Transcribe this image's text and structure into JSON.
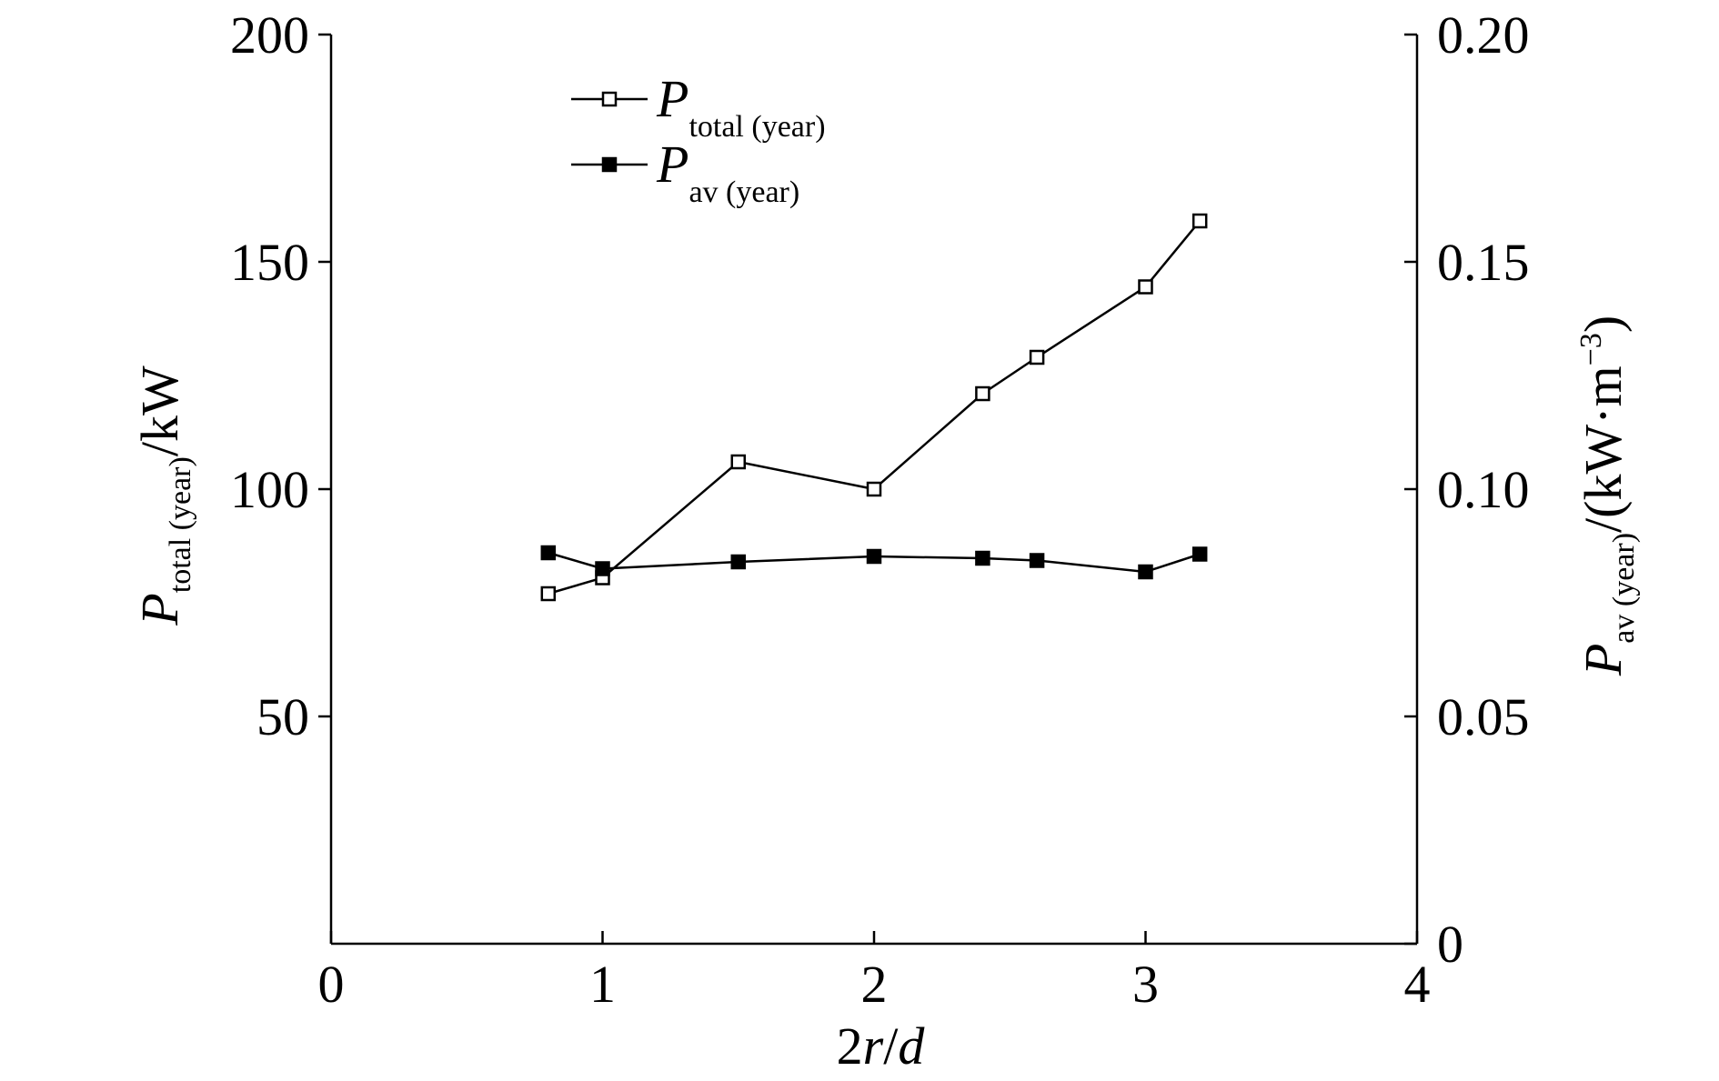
{
  "chart_data": {
    "type": "line",
    "x_axis": {
      "label_main": "2",
      "label_r": "r",
      "label_slash": "/",
      "label_d": "d",
      "range": [
        0,
        4
      ],
      "ticks": [
        0,
        1,
        2,
        3,
        4
      ],
      "tick_labels": [
        "0",
        "1",
        "2",
        "3",
        "4"
      ]
    },
    "y_left": {
      "label_P": "P",
      "label_sub": "total (year)",
      "label_unit": "/kW",
      "range": [
        0,
        200
      ],
      "ticks": [
        50,
        100,
        150,
        200
      ],
      "tick_labels": [
        "50",
        "100",
        "150",
        "200"
      ]
    },
    "y_right": {
      "label_P": "P",
      "label_sub": "av (year)",
      "label_unit_a": "/(kW·m",
      "label_sup": "−3",
      "label_unit_b": ")",
      "range": [
        0,
        0.2
      ],
      "ticks": [
        0,
        0.05,
        0.1,
        0.15,
        0.2
      ],
      "tick_labels": [
        "0",
        "0.05",
        "0.10",
        "0.15",
        "0.20"
      ]
    },
    "series": [
      {
        "name_P": "P",
        "name_sub": "total (year)",
        "axis": "left",
        "marker": "open-square",
        "x": [
          0.8,
          1.0,
          1.5,
          2.0,
          2.4,
          2.6,
          3.0,
          3.2
        ],
        "y": [
          77,
          80.5,
          106,
          100,
          121,
          129,
          144.5,
          159
        ]
      },
      {
        "name_P": "P",
        "name_sub": "av (year)",
        "axis": "right",
        "marker": "filled-square",
        "x": [
          0.8,
          1.0,
          1.5,
          2.0,
          2.4,
          2.6,
          3.0,
          3.2
        ],
        "y": [
          0.086,
          0.0825,
          0.084,
          0.0852,
          0.0848,
          0.0843,
          0.0818,
          0.0857
        ]
      }
    ],
    "legend_position": "top-left",
    "grid": false
  }
}
